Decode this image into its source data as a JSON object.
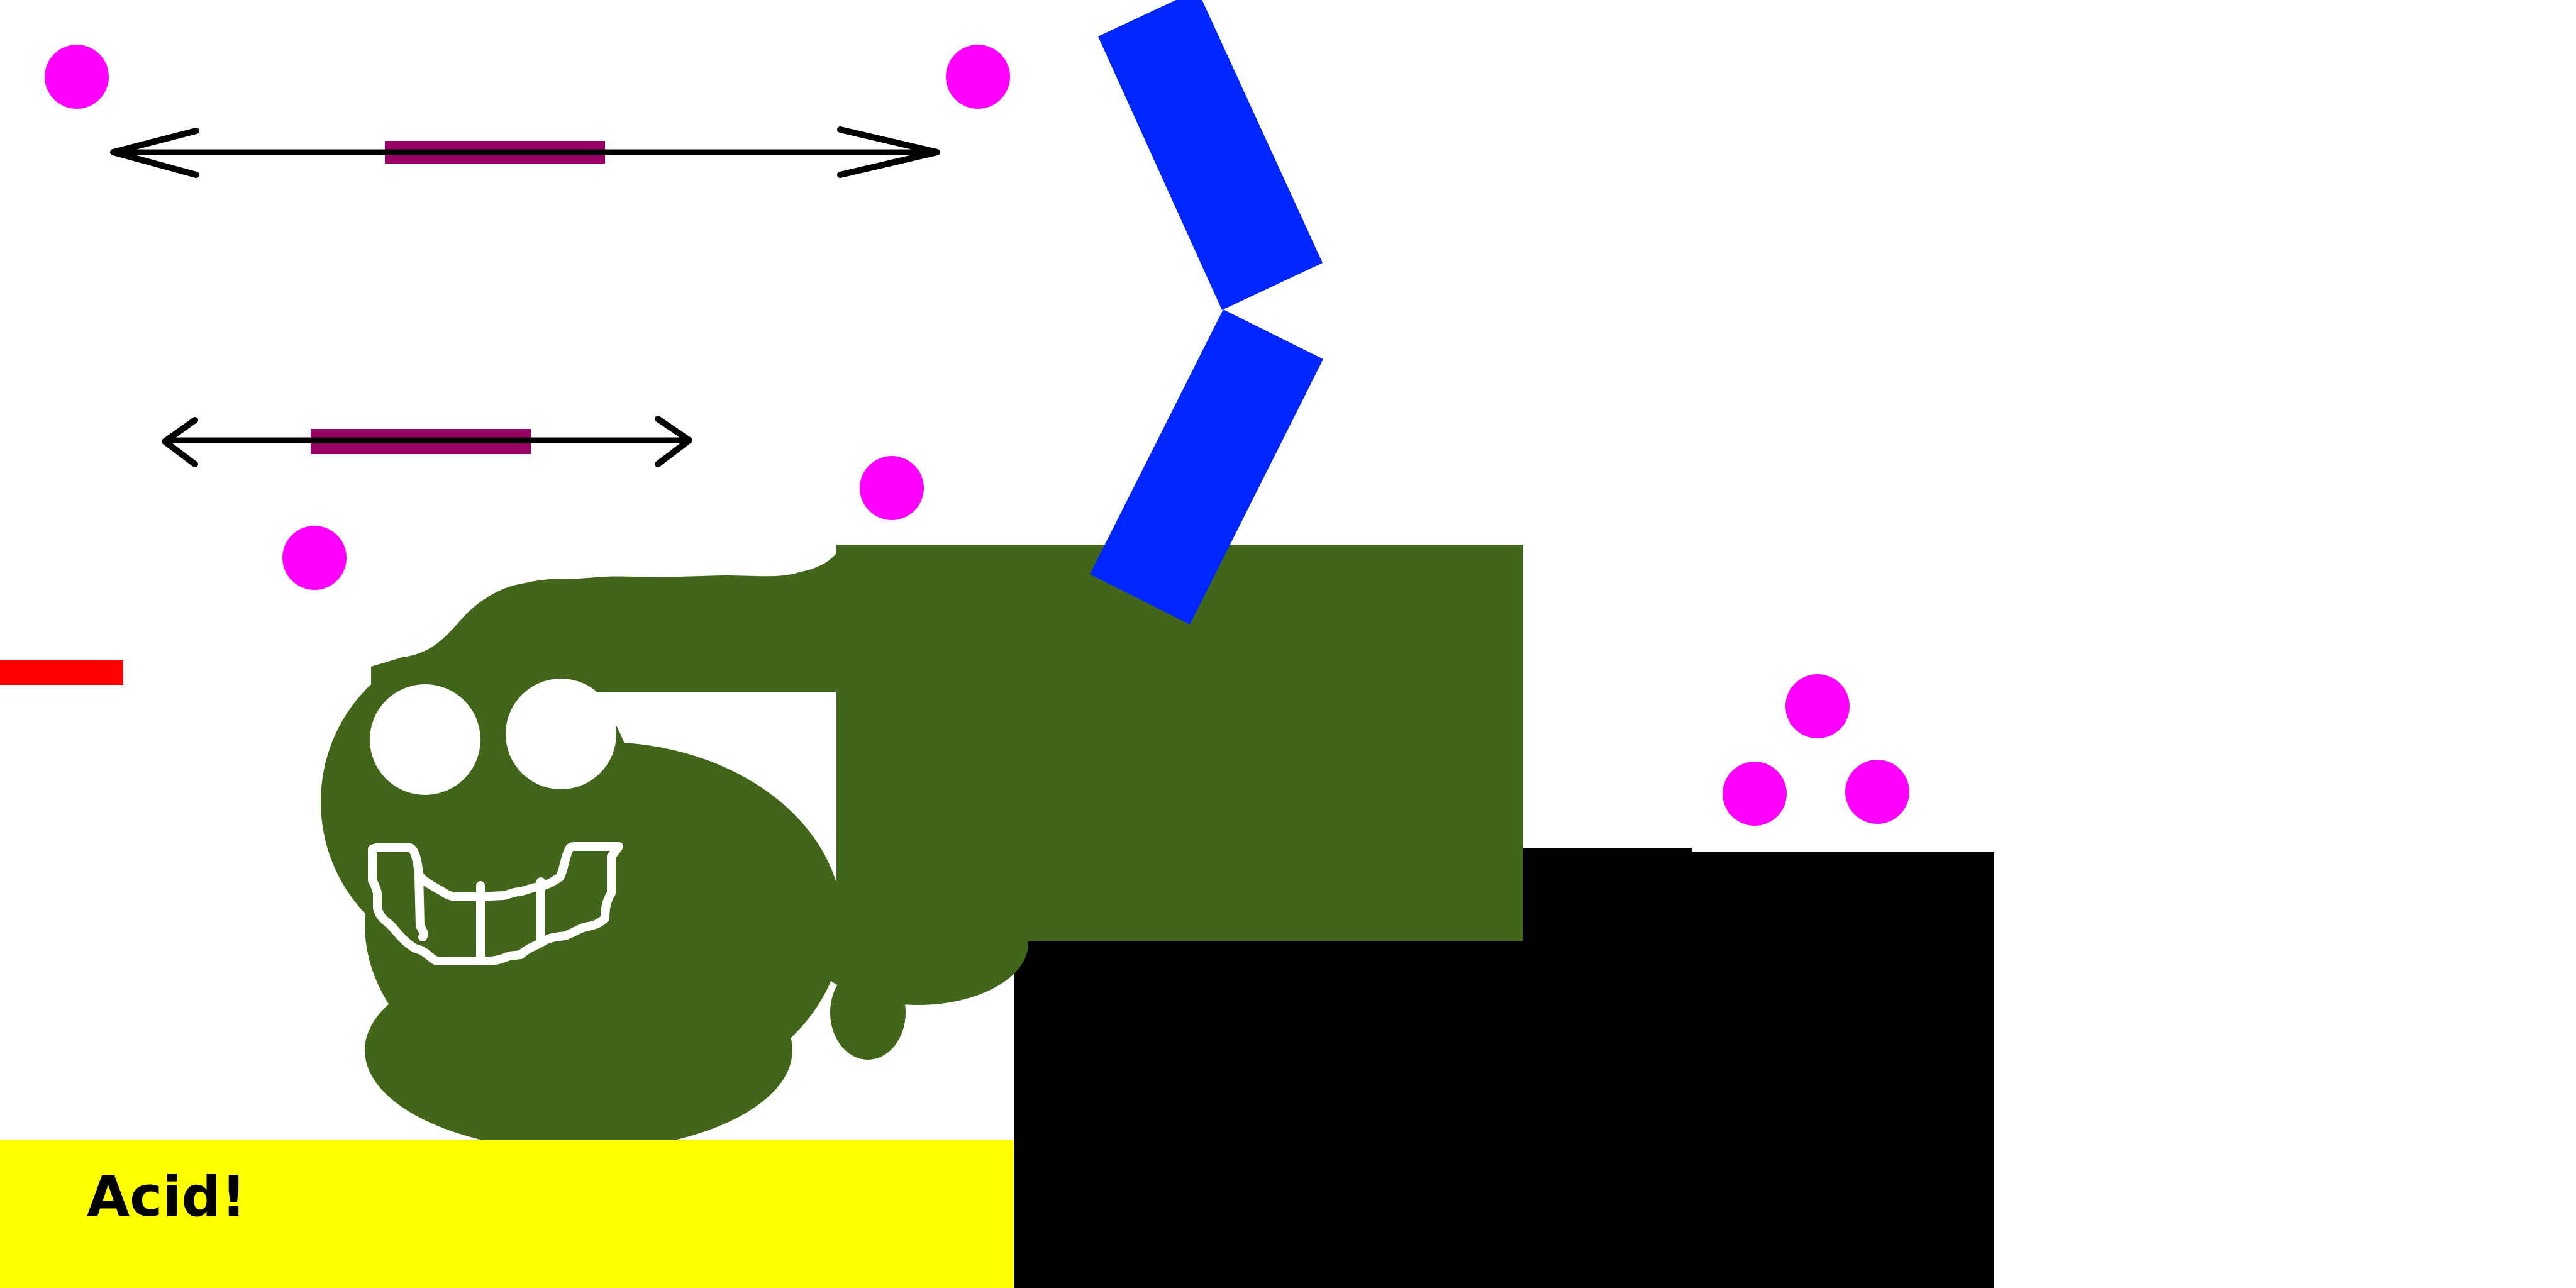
{
  "colors": {
    "background": "#ffffff",
    "monster_body": "#41661a",
    "monster_features": "#ffffff",
    "acid_pool": "#ffff00",
    "ground_blocks": "#000000",
    "orbs": "#ff00ff",
    "track_line": "#000000",
    "moving_platform": "#990066",
    "hinged_arm": "#0026ff",
    "hazard_ledge": "#ff0000"
  },
  "acid_pool": {
    "label": "Acid!"
  },
  "icons": {
    "orb": "magenta-circle",
    "track_endpoint": "arrowhead"
  }
}
